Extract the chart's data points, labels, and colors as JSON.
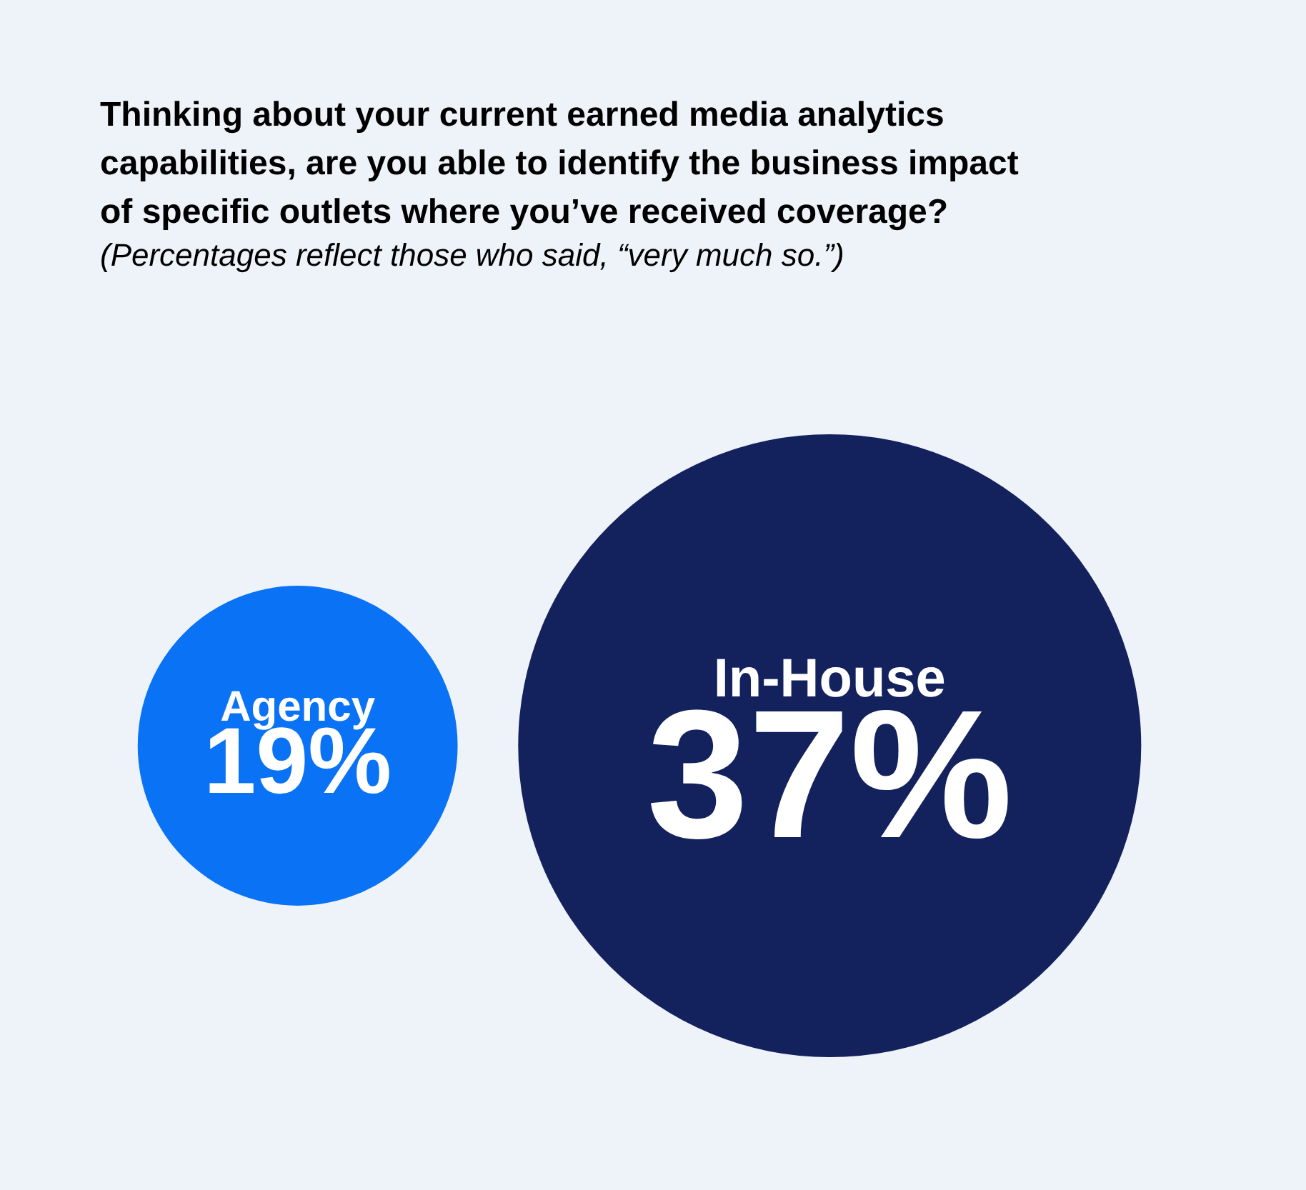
{
  "chart_data": {
    "type": "other",
    "title": "Thinking about your current earned media analytics capabilities, are you able to identify the business impact of specific outlets where you’ve received coverage?",
    "subtitle": "(Percentages reflect those who said, “very much so.”)",
    "categories": [
      "Agency",
      "In-House"
    ],
    "values": [
      19,
      37
    ],
    "value_labels": [
      "19%",
      "37%"
    ],
    "colors": [
      "#0a72f5",
      "#13215c"
    ]
  }
}
